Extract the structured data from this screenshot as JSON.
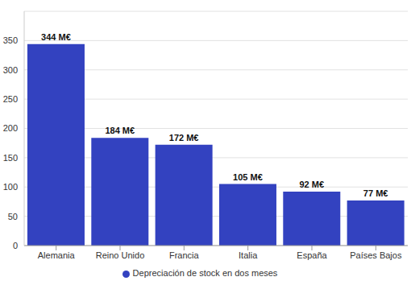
{
  "chart_data": {
    "type": "bar",
    "categories": [
      "Alemania",
      "Reino Unido",
      "Francia",
      "Italia",
      "España",
      "Países Bajos"
    ],
    "series": [
      {
        "name": "Depreciación de stock en dos meses",
        "color": "#3342c0",
        "values": [
          344,
          184,
          172,
          105,
          92,
          77
        ],
        "value_labels": [
          "344 M€",
          "184 M€",
          "172 M€",
          "105 M€",
          "92 M€",
          "77 M€"
        ]
      }
    ],
    "ylim": [
      0,
      400
    ],
    "yticks": [
      0,
      50,
      100,
      150,
      200,
      250,
      300,
      350
    ],
    "grid": true,
    "data_labels": true,
    "legend": "bottom"
  }
}
